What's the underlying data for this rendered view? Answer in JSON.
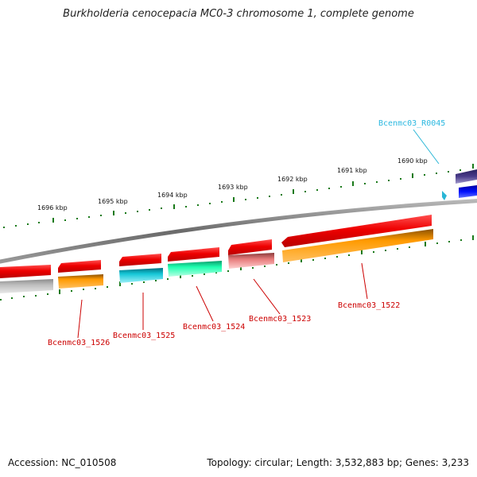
{
  "title": "Burkholderia cenocepacia MC0-3 chromosome 1, complete genome",
  "footer": {
    "accession": "Accession: NC_010508",
    "summary": "Topology: circular; Length: 3,532,883 bp; Genes: 3,233"
  },
  "colors": {
    "backbone": "#7f7f7f",
    "tick": "#1a7a1a",
    "label_default": "#cc0000",
    "label_rna": "#29b6d6"
  },
  "scale": {
    "major_ticks": [
      "1690 kbp",
      "1691 kbp",
      "1692 kbp",
      "1693 kbp",
      "1694 kbp",
      "1695 kbp",
      "1696 kbp"
    ]
  },
  "genes": [
    {
      "label": "Bcenmc03_R0045",
      "color": "#2bb8e0"
    },
    {
      "label": "Bcenmc03_1522",
      "color": "#cc0000"
    },
    {
      "label": "Bcenmc03_1523",
      "color": "#cc0000"
    },
    {
      "label": "Bcenmc03_1524",
      "color": "#cc0000"
    },
    {
      "label": "Bcenmc03_1525",
      "color": "#cc0000"
    },
    {
      "label": "Bcenmc03_1526",
      "color": "#cc0000"
    }
  ]
}
